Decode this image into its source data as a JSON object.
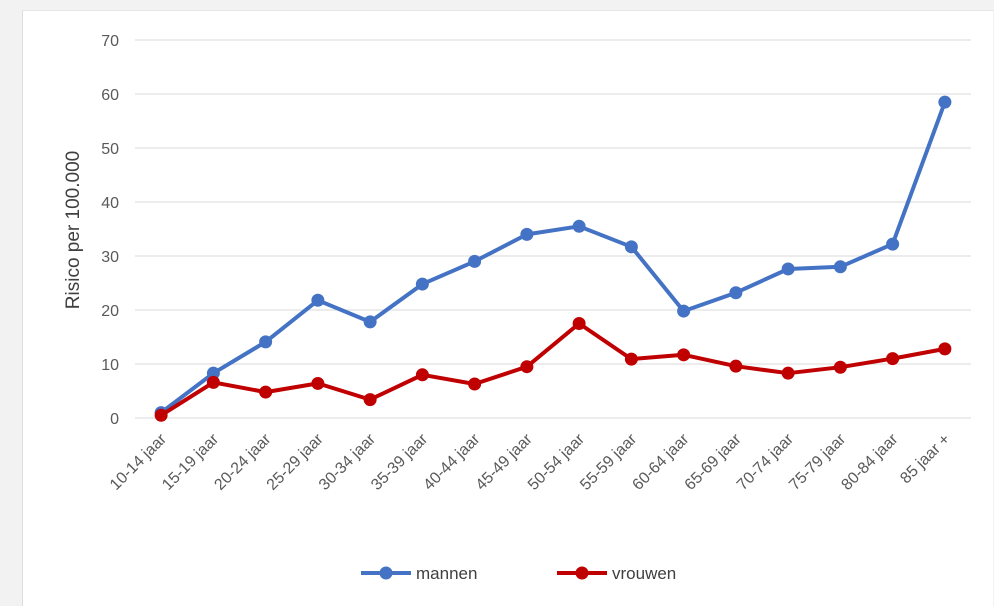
{
  "chart_data": {
    "type": "line",
    "title": "",
    "xlabel": "",
    "ylabel": "Risico per 100.000",
    "ylim": [
      0,
      70
    ],
    "yticks": [
      0,
      10,
      20,
      30,
      40,
      50,
      60,
      70
    ],
    "grid": true,
    "legend_position": "bottom",
    "categories": [
      "10-14 jaar",
      "15-19 jaar",
      "20-24 jaar",
      "25-29 jaar",
      "30-34 jaar",
      "35-39 jaar",
      "40-44 jaar",
      "45-49 jaar",
      "50-54 jaar",
      "55-59 jaar",
      "60-64 jaar",
      "65-69 jaar",
      "70-74 jaar",
      "75-79 jaar",
      "80-84 jaar",
      "85 jaar +"
    ],
    "series": [
      {
        "name": "mannen",
        "color": "#4472c4",
        "values": [
          1.0,
          8.3,
          14.1,
          21.8,
          17.8,
          24.8,
          29.0,
          34.0,
          35.5,
          31.7,
          19.8,
          23.2,
          27.6,
          28.0,
          32.2,
          58.5
        ]
      },
      {
        "name": "vrouwen",
        "color": "#c00000",
        "values": [
          0.5,
          6.6,
          4.8,
          6.4,
          3.4,
          8.0,
          6.3,
          9.5,
          17.5,
          10.9,
          11.7,
          9.6,
          8.3,
          9.4,
          11.0,
          12.8
        ]
      }
    ]
  }
}
